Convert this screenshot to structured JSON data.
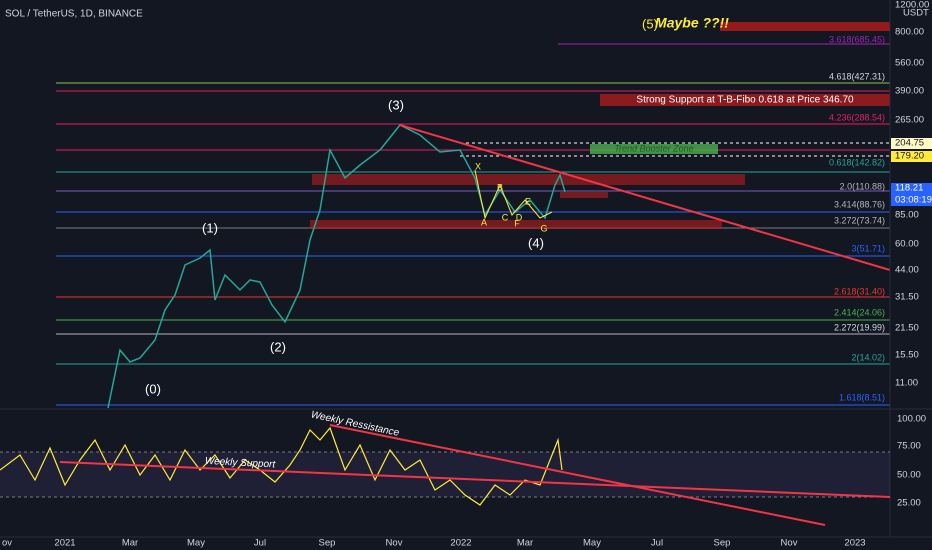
{
  "header": {
    "symbol": "SOL / TetherUS, 1D, BINANCE",
    "currency": "USDT"
  },
  "price_axis": [
    {
      "label": "1200.00",
      "y": 0
    },
    {
      "label": "800.00",
      "y": 0
    },
    {
      "label": "560.00",
      "y": 0
    },
    {
      "label": "390.00",
      "y": 0
    },
    {
      "label": "265.00",
      "y": 0
    },
    {
      "label": "204.75",
      "y": 0
    },
    {
      "label": "179.20",
      "y": 0
    },
    {
      "label": "118.21",
      "y": 0
    },
    {
      "label": "03:08:19",
      "y": 0
    },
    {
      "label": "85.00",
      "y": 0
    },
    {
      "label": "60.00",
      "y": 0
    },
    {
      "label": "44.00",
      "y": 0
    },
    {
      "label": "31.50",
      "y": 0
    },
    {
      "label": "21.50",
      "y": 0
    },
    {
      "label": "15.50",
      "y": 0
    },
    {
      "label": "11.00",
      "y": 0
    }
  ],
  "fib_labels": [
    "3.618(685.45)",
    "4.618(427.31)",
    "4.236(288.54)",
    "0.618(142.82)",
    "2.0(110.88)",
    "3.414(88.76)",
    "3.272(73.74)",
    "3(51.71)",
    "2.618(31.40)",
    "2.414(24.06)",
    "2.272(19.99)",
    "2(14.02)",
    "1.618(8.51)"
  ],
  "annotations": {
    "wave5": "(5)",
    "maybe": "Maybe ??!!",
    "wave3": "(3)",
    "wave1": "(1)",
    "wave2": "(2)",
    "wave0": "(0)",
    "wave4": "(4)",
    "strong_support": "Strong Support at T-B-Fibo 0.618 at Price 346.70",
    "trend_booster": "Trend Booster Zone",
    "weekly_resistance": "Weekly Ressistance",
    "weekly_support": "Weekly Support",
    "points": [
      "X",
      "A",
      "B",
      "C",
      "D",
      "E",
      "F",
      "G"
    ]
  },
  "indicator_axis": [
    "100.00",
    "75.00",
    "50.00",
    "25.00"
  ],
  "time_axis": [
    "ov",
    "2021",
    "Mar",
    "May",
    "Jul",
    "Sep",
    "Nov",
    "2022",
    "Mar",
    "May",
    "Jul",
    "Sep",
    "Nov",
    "2023"
  ]
}
